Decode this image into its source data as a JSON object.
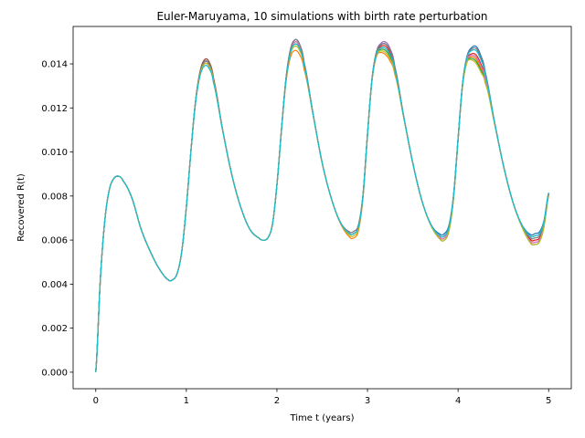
{
  "chart_data": {
    "type": "line",
    "title": "Euler-Maruyama, 10 simulations with birth rate perturbation",
    "xlabel": "Time t (years)",
    "ylabel": "Recovered R(t)",
    "xlim": [
      -0.25,
      5.25
    ],
    "ylim": [
      -0.00075,
      0.0157
    ],
    "xticks": [
      0,
      1,
      2,
      3,
      4,
      5
    ],
    "xtick_labels": [
      "0",
      "1",
      "2",
      "3",
      "4",
      "5"
    ],
    "yticks": [
      0.0,
      0.002,
      0.004,
      0.006,
      0.008,
      0.01,
      0.012,
      0.014
    ],
    "ytick_labels": [
      "0.000",
      "0.002",
      "0.004",
      "0.006",
      "0.008",
      "0.010",
      "0.012",
      "0.014"
    ],
    "grid": false,
    "legend": "none",
    "base_curve": {
      "x": [
        0,
        0.05,
        0.1,
        0.15,
        0.2,
        0.25,
        0.3,
        0.4,
        0.5,
        0.6,
        0.7,
        0.8,
        0.85,
        0.9,
        0.95,
        1.0,
        1.05,
        1.1,
        1.15,
        1.2,
        1.25,
        1.3,
        1.4,
        1.5,
        1.6,
        1.7,
        1.8,
        1.85,
        1.9,
        1.95,
        2.0,
        2.05,
        2.1,
        2.15,
        2.2,
        2.25,
        2.3,
        2.4,
        2.5,
        2.6,
        2.7,
        2.8,
        2.85,
        2.9,
        2.95,
        3.0,
        3.05,
        3.1,
        3.15,
        3.2,
        3.25,
        3.3,
        3.4,
        3.5,
        3.6,
        3.7,
        3.8,
        3.85,
        3.9,
        3.95,
        4.0,
        4.05,
        4.1,
        4.15,
        4.2,
        4.25,
        4.3,
        4.4,
        4.5,
        4.6,
        4.7,
        4.8,
        4.85,
        4.9,
        4.95,
        5.0
      ],
      "y": [
        0.0,
        0.0042,
        0.0069,
        0.0083,
        0.0088,
        0.0089,
        0.0087,
        0.0079,
        0.0065,
        0.0055,
        0.0047,
        0.0042,
        0.0042,
        0.0045,
        0.0055,
        0.0075,
        0.01,
        0.0122,
        0.0135,
        0.014,
        0.0139,
        0.0132,
        0.011,
        0.009,
        0.0075,
        0.0065,
        0.0061,
        0.006,
        0.0061,
        0.0067,
        0.0085,
        0.011,
        0.0133,
        0.0146,
        0.015,
        0.0148,
        0.014,
        0.0117,
        0.0095,
        0.0079,
        0.0068,
        0.0063,
        0.0063,
        0.0066,
        0.008,
        0.0108,
        0.0133,
        0.0145,
        0.0148,
        0.0148,
        0.0145,
        0.0138,
        0.0116,
        0.0095,
        0.0078,
        0.0067,
        0.0062,
        0.0062,
        0.0066,
        0.008,
        0.0106,
        0.0131,
        0.0143,
        0.0146,
        0.0146,
        0.0142,
        0.0135,
        0.0114,
        0.0094,
        0.0078,
        0.0067,
        0.0061,
        0.0061,
        0.0062,
        0.0068,
        0.0081
      ]
    },
    "series": [
      {
        "color": "#1f77b4",
        "peak_offsets": [
          0.0001,
          0.0,
          0.0001,
          0.0002
        ],
        "trough_offsets": [
          0.0,
          0.0,
          0.0001,
          0.0002
        ]
      },
      {
        "color": "#ff7f0e",
        "peak_offsets": [
          0.0,
          -0.0004,
          -0.0004,
          -0.0004
        ],
        "trough_offsets": [
          0.0,
          -0.0002,
          -0.0001,
          -0.0001
        ]
      },
      {
        "color": "#2ca02c",
        "peak_offsets": [
          0.0001,
          -0.0001,
          -0.0002,
          -0.0005
        ],
        "trough_offsets": [
          0.0,
          0.0,
          -0.0002,
          -0.0003
        ]
      },
      {
        "color": "#d62728",
        "peak_offsets": [
          0.0002,
          0.0001,
          0.0,
          -0.0002
        ],
        "trough_offsets": [
          0.0,
          0.0,
          -0.0001,
          -0.0001
        ]
      },
      {
        "color": "#9467bd",
        "peak_offsets": [
          0.0001,
          0.0001,
          0.0002,
          0.0001
        ],
        "trough_offsets": [
          0.0,
          0.0001,
          0.0,
          0.0001
        ]
      },
      {
        "color": "#8c564b",
        "peak_offsets": [
          0.0002,
          0.0,
          0.0001,
          -0.0003
        ],
        "trough_offsets": [
          0.0,
          0.0,
          -0.0001,
          -0.0002
        ]
      },
      {
        "color": "#e377c2",
        "peak_offsets": [
          0.0,
          0.0,
          -0.0001,
          -0.0003
        ],
        "trough_offsets": [
          0.0,
          0.0,
          -0.0001,
          -0.0002
        ]
      },
      {
        "color": "#7f7f7f",
        "peak_offsets": [
          0.0001,
          0.0001,
          0.0001,
          0.0001
        ],
        "trough_offsets": [
          0.0,
          0.0001,
          0.0,
          0.0
        ]
      },
      {
        "color": "#bcbd22",
        "peak_offsets": [
          0.0,
          -0.0002,
          -0.0003,
          -0.0006
        ],
        "trough_offsets": [
          0.0,
          -0.0001,
          -0.0002,
          -0.0003
        ]
      },
      {
        "color": "#17becf",
        "peak_offsets": [
          -0.0001,
          -0.0001,
          -0.0001,
          0.0
        ],
        "trough_offsets": [
          0.0,
          0.0,
          0.0,
          0.0001
        ]
      }
    ]
  }
}
